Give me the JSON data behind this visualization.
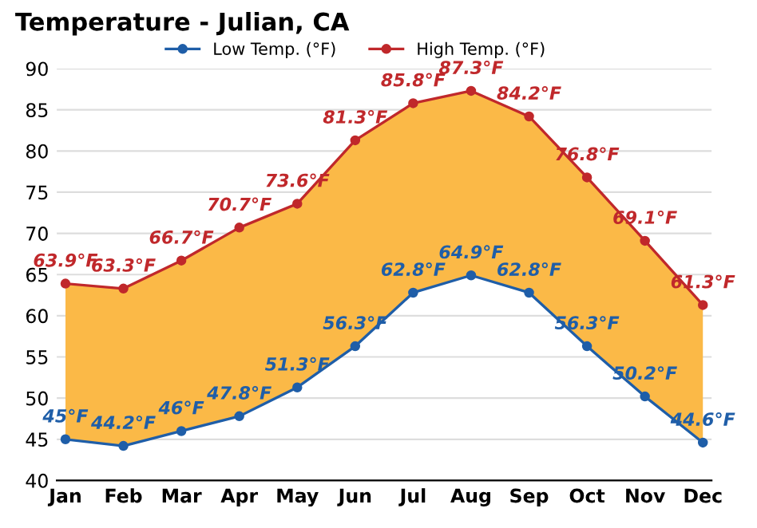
{
  "chart_data": {
    "type": "line",
    "title": "Temperature - Julian, CA",
    "categories": [
      "Jan",
      "Feb",
      "Mar",
      "Apr",
      "May",
      "Jun",
      "Jul",
      "Aug",
      "Sep",
      "Oct",
      "Nov",
      "Dec"
    ],
    "series": [
      {
        "name": "Low Temp. (°F)",
        "color": "#1f5ea8",
        "values": [
          45,
          44.2,
          46,
          47.8,
          51.3,
          56.3,
          62.8,
          64.9,
          62.8,
          56.3,
          50.2,
          44.6
        ],
        "value_labels": [
          "45°F",
          "44.2°F",
          "46°F",
          "47.8°F",
          "51.3°F",
          "56.3°F",
          "62.8°F",
          "64.9°F",
          "62.8°F",
          "56.3°F",
          "50.2°F",
          "44.6°F"
        ]
      },
      {
        "name": "High Temp. (°F)",
        "color": "#c0282b",
        "values": [
          63.9,
          63.3,
          66.7,
          70.7,
          73.6,
          81.3,
          85.8,
          87.3,
          84.2,
          76.8,
          69.1,
          61.3
        ],
        "value_labels": [
          "63.9°F",
          "63.3°F",
          "66.7°F",
          "70.7°F",
          "73.6°F",
          "81.3°F",
          "85.8°F",
          "87.3°F",
          "84.2°F",
          "76.8°F",
          "69.1°F",
          "61.3°F"
        ],
        "lower": [
          45,
          44.2,
          46,
          47.8,
          51.3,
          56.3,
          62.8,
          64.9,
          62.8,
          56.3,
          50.2,
          44.6
        ],
        "upper": [
          63.9,
          63.3,
          66.7,
          70.7,
          73.6,
          81.3,
          85.8,
          87.3,
          84.2,
          76.8,
          69.1,
          61.3
        ],
        "colors": [
          "#fde08a",
          "#fdd360",
          "#fdc94a",
          "#fcbd3c",
          "#fbb133",
          "#f9a02c",
          "#f8962a",
          "#f8922a",
          "#f9a02c",
          "#fbb534",
          "#fcc944",
          "#fde08a"
        ]
      }
    ],
    "ylim": [
      40,
      90
    ],
    "yticks": [
      40,
      45,
      50,
      55,
      60,
      65,
      70,
      75,
      80,
      85,
      90
    ],
    "grid": "y",
    "legend": "top",
    "marker": "circle",
    "line_style": "solid"
  }
}
